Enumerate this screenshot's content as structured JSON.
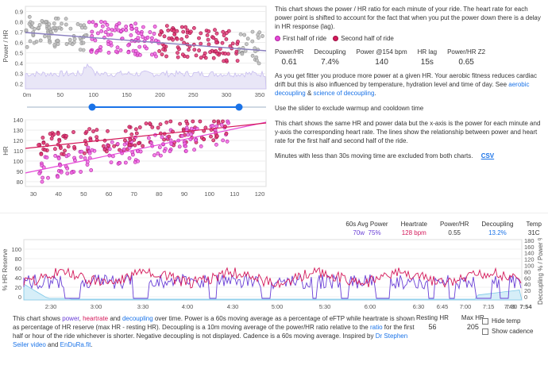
{
  "top_chart": {
    "ylabel": "Power / HR",
    "yticks": [
      "0.2",
      "0.3",
      "0.4",
      "0.5",
      "0.6",
      "0.7",
      "0.8",
      "0.9"
    ],
    "xticks": [
      "0m",
      "50",
      "100",
      "150",
      "200",
      "250",
      "300",
      "350"
    ]
  },
  "mid_chart": {
    "ylabel": "HR",
    "yticks": [
      "80",
      "90",
      "100",
      "110",
      "120",
      "130",
      "140"
    ],
    "xticks": [
      "30",
      "40",
      "50",
      "60",
      "70",
      "80",
      "90",
      "100",
      "110",
      "120"
    ]
  },
  "text1": {
    "p1": "This chart shows the power / HR ratio for each minute of your ride. The heart rate for each power point is shifted to account for the fact that when you put the power down there is a delay in HR response (lag).",
    "legend1": "First half of ride",
    "legend2": "Second half of ride",
    "p2_a": "As you get fitter you produce more power at a given HR. Your aerobic fitness reduces cardiac drift but this is also influenced by temperature, hydration level and time of day. See",
    "p2_link1": "aerobic decoupling",
    "p2_amp": "&",
    "p2_link2": "science of decoupling",
    "p3": "Use the slider to exclude warmup and cooldown time",
    "p4": "This chart shows the same HR and power data but the x-axis is the power for each minute and y-axis the corresponding heart rate. The lines show the relationship between power and heart rate for the first half and second half of the ride.",
    "p5": "Minutes with less than 30s moving time are excluded from both charts.",
    "csv": "CSV"
  },
  "stats": [
    {
      "label": "Power/HR",
      "value": "0.61"
    },
    {
      "label": "Decoupling",
      "value": "7.4%"
    },
    {
      "label": "Power @154 bpm",
      "value": "140"
    },
    {
      "label": "HR lag",
      "value": "15s"
    },
    {
      "label": "Power/HR Z2",
      "value": "0.65"
    }
  ],
  "bottom_header": {
    "avg_power_label": "60s Avg Power",
    "avg_power_w": "70w",
    "avg_power_pct": "75%",
    "hr_label": "Heartrate",
    "hr_value": "128 bpm",
    "phr_label": "Power/HR",
    "phr_value": "0.55",
    "dec_label": "Decoupling",
    "dec_value": "13.2%",
    "temp_label": "Temp",
    "temp_value": "31C"
  },
  "bottom_chart": {
    "ylabel_left": "% HR Reserve",
    "ylabel_right": "Decoupling % / Power %",
    "yticks_left": [
      "0",
      "20",
      "40",
      "60",
      "80",
      "100"
    ],
    "yticks_right": [
      "0",
      "20",
      "40",
      "60",
      "80",
      "100",
      "120",
      "140",
      "160",
      "180"
    ],
    "xticks": [
      "2:30",
      "3:00",
      "3:30",
      "4:00",
      "4:30",
      "5:00",
      "5:30",
      "6:00",
      "6:30",
      "6:45",
      "7:00",
      "7:15",
      "7:30",
      "7:45",
      "7:54"
    ]
  },
  "bottom_text": {
    "a": "This chart shows",
    "power": "power",
    "c1": ",",
    "heartrate": "heartrate",
    "and1": "and",
    "decoupling": "decoupling",
    "b": "over time. Power is a 60s moving average as a percentage of eFTP while heartrate is shown as percentage of HR reserve (max HR - resting HR). Decoupling is a 10m moving average of the power/HR ratio relative to the",
    "ratio": "ratio",
    "c": "for the first half or hour of the ride whichever is shorter. Negative decoupling is not displayed. Cadence is a 60s moving average. Inspired by",
    "link1": "Dr Stephen Seiler video",
    "and2": "and",
    "link2": "EnDuRa.fit",
    "end": "."
  },
  "resting": {
    "label": "Resting HR",
    "value": "56"
  },
  "maxhr": {
    "label": "Max HR",
    "value": "205"
  },
  "checks": {
    "hide_temp": "Hide temp",
    "show_cadence": "Show cadence"
  },
  "colors": {
    "first": "#e64bd8",
    "second": "#d4195a",
    "gray": "#9e9e9e",
    "power": "#6a3fd6",
    "hr": "#d4195a",
    "decoupling": "#7ec8e8",
    "accent": "#1a73e8"
  }
}
